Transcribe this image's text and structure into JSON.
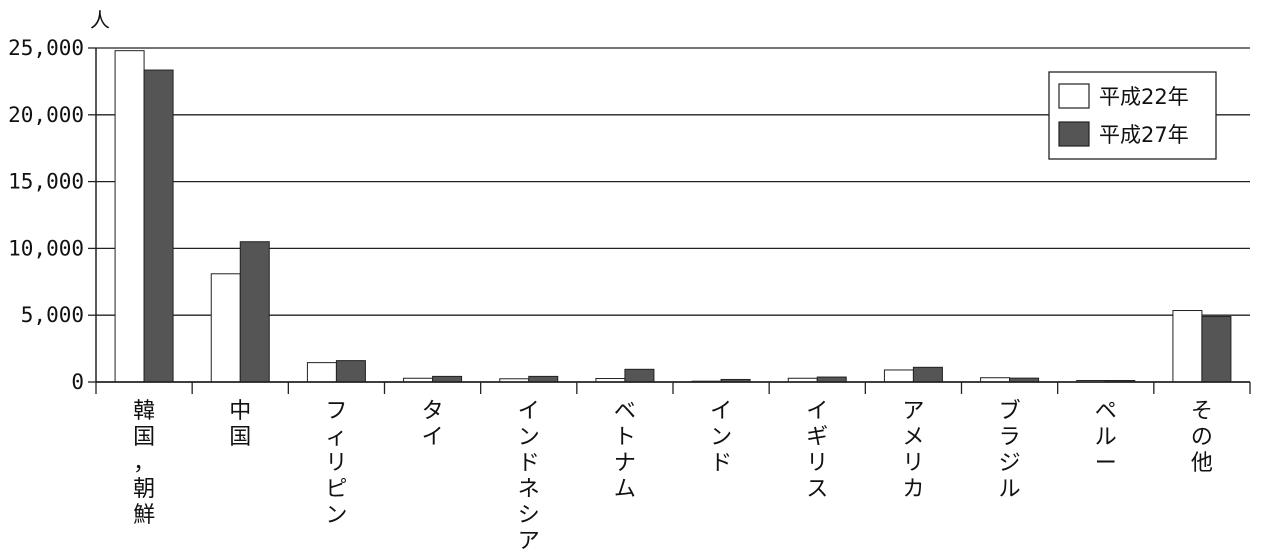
{
  "chart_data": {
    "type": "bar",
    "title": "",
    "xlabel": "",
    "ylabel": "",
    "unit_label": "人",
    "ylim": [
      0,
      25000
    ],
    "yticks": [
      0,
      5000,
      10000,
      15000,
      20000,
      25000
    ],
    "ytick_labels": [
      "0",
      "5,000",
      "10,000",
      "15,000",
      "20,000",
      "25,000"
    ],
    "grid": true,
    "legend_position": "top-right",
    "categories": [
      "韓国，朝鮮",
      "中国",
      "フィリピン",
      "タイ",
      "インドネシア",
      "ベトナム",
      "インド",
      "イギリス",
      "アメリカ",
      "ブラジル",
      "ペルー",
      "その他"
    ],
    "series": [
      {
        "name": "平成22年",
        "color": "#ffffff",
        "values": [
          24800,
          8100,
          1450,
          280,
          240,
          260,
          60,
          280,
          900,
          320,
          110,
          5350
        ]
      },
      {
        "name": "平成27年",
        "color": "#555555",
        "values": [
          23350,
          10500,
          1600,
          420,
          420,
          950,
          190,
          370,
          1100,
          290,
          110,
          4900
        ]
      }
    ]
  }
}
